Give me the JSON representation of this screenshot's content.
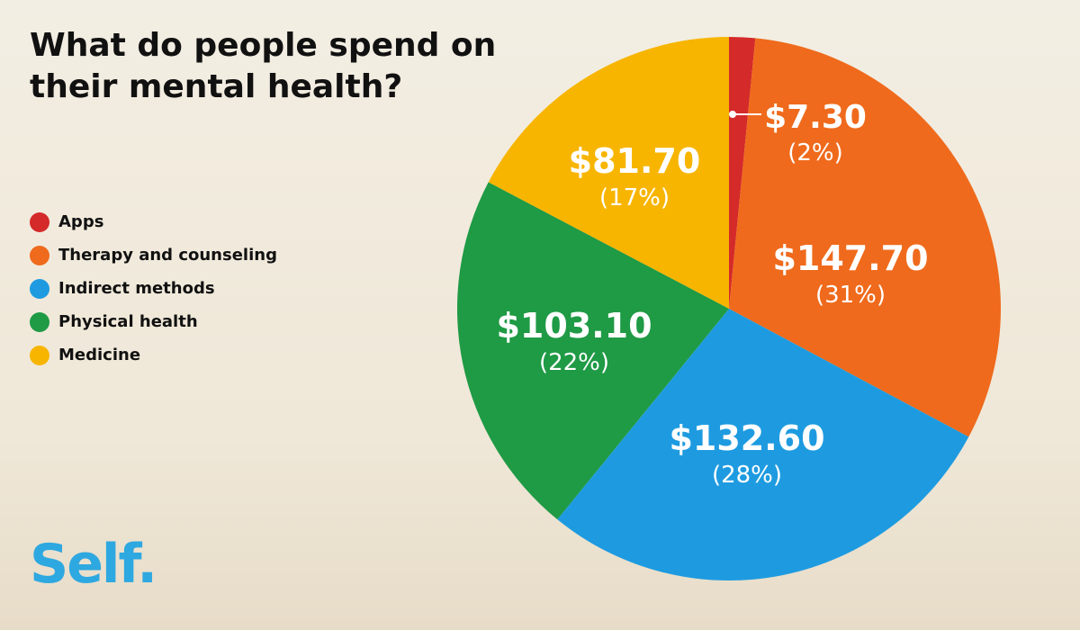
{
  "title": "What do people spend on their mental health?",
  "logo": "Self.",
  "colors": {
    "apps": "#d42a2a",
    "therapy": "#ef6a1c",
    "indirect": "#1e9be0",
    "physical": "#1f9a45",
    "medicine": "#f7b500",
    "logo": "#2ea8e0"
  },
  "legend": [
    {
      "label": "Apps",
      "color_key": "apps"
    },
    {
      "label": "Therapy and counseling",
      "color_key": "therapy"
    },
    {
      "label": "Indirect methods",
      "color_key": "indirect"
    },
    {
      "label": "Physical health",
      "color_key": "physical"
    },
    {
      "label": "Medicine",
      "color_key": "medicine"
    }
  ],
  "chart_data": {
    "type": "pie",
    "title": "What do people spend on their mental health?",
    "legend_position": "left",
    "slices": [
      {
        "name": "Apps",
        "value": 7.3,
        "value_label": "$7.30",
        "percent_label": "(2%)",
        "color_key": "apps"
      },
      {
        "name": "Therapy and counseling",
        "value": 147.7,
        "value_label": "$147.70",
        "percent_label": "(31%)",
        "color_key": "therapy"
      },
      {
        "name": "Indirect methods",
        "value": 132.6,
        "value_label": "$132.60",
        "percent_label": "(28%)",
        "color_key": "indirect"
      },
      {
        "name": "Physical health",
        "value": 103.1,
        "value_label": "$103.10",
        "percent_label": "(22%)",
        "color_key": "physical"
      },
      {
        "name": "Medicine",
        "value": 81.7,
        "value_label": "$81.70",
        "percent_label": "(17%)",
        "color_key": "medicine"
      }
    ]
  }
}
